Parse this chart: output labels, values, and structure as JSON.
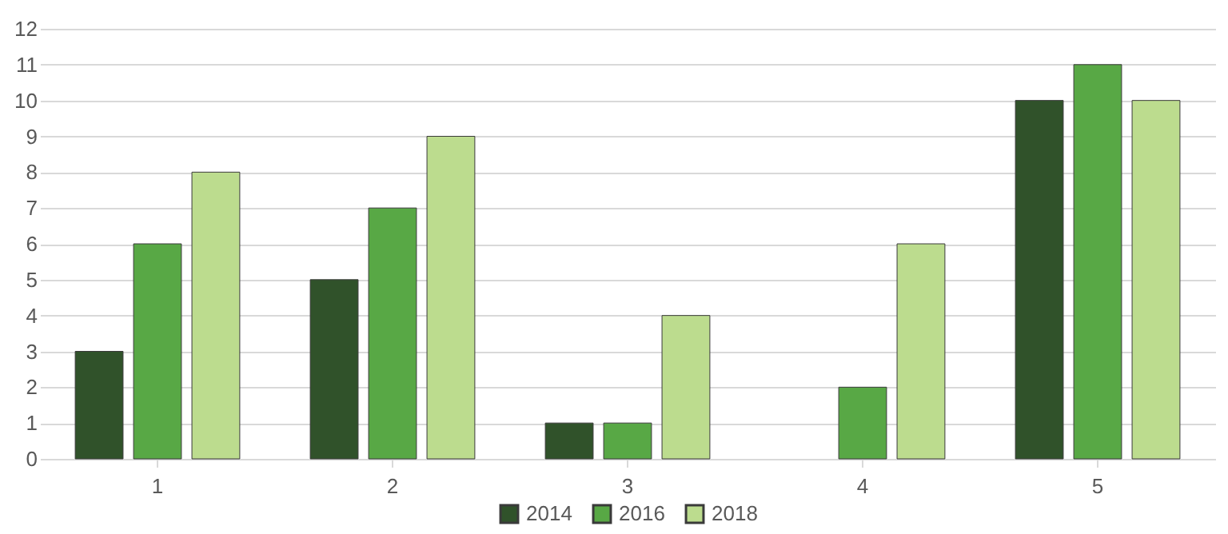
{
  "chart_data": {
    "type": "bar",
    "categories": [
      "1",
      "2",
      "3",
      "4",
      "5"
    ],
    "series": [
      {
        "name": "2014",
        "color": "#30522a",
        "values": [
          3,
          5,
          1,
          null,
          10
        ]
      },
      {
        "name": "2016",
        "color": "#58a845",
        "values": [
          6,
          7,
          1,
          2,
          11
        ]
      },
      {
        "name": "2018",
        "color": "#bcdc8e",
        "values": [
          8,
          9,
          4,
          6,
          10
        ]
      }
    ],
    "ylim": [
      0,
      12
    ],
    "yticks": [
      0,
      1,
      2,
      3,
      4,
      5,
      6,
      7,
      8,
      9,
      10,
      11,
      12
    ],
    "grid": "y",
    "legend": "bottom"
  }
}
